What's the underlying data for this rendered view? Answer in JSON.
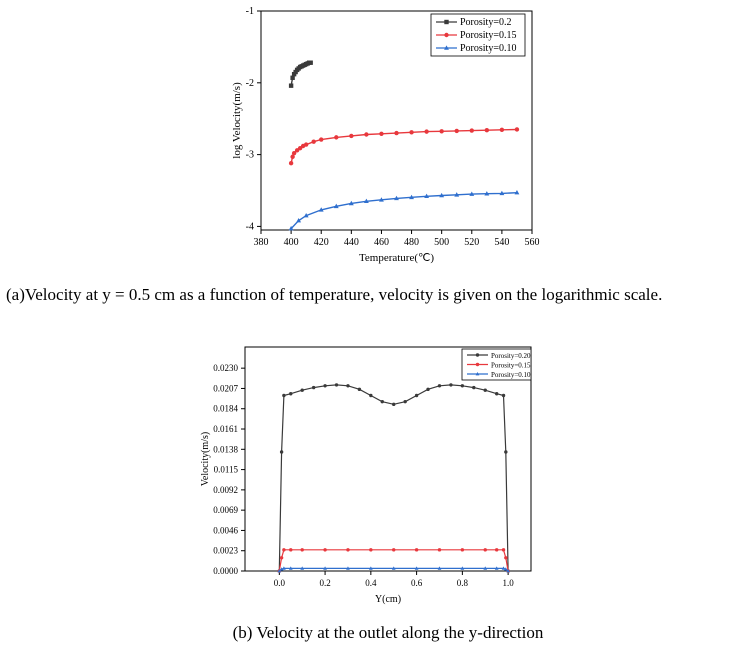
{
  "captions": {
    "a": "(a)Velocity at y = 0.5 cm as a function of temperature, velocity is given on the logarithmic scale.",
    "b": "(b)  Velocity at the outlet along the y-direction"
  },
  "colors": {
    "black_series": "#3a3a3a",
    "red_series": "#e8383d",
    "blue_series": "#2f6fce"
  },
  "chart_data": [
    {
      "type": "line",
      "xlabel": "Temperature(℃)",
      "ylabel": "log Velocity(m/s)",
      "xlim": [
        380,
        560
      ],
      "ylim": [
        -4.05,
        -1
      ],
      "xticks": [
        "380",
        "400",
        "420",
        "440",
        "460",
        "480",
        "500",
        "520",
        "540",
        "560"
      ],
      "yticks": [
        "-1",
        "-2",
        "-3",
        "-4"
      ],
      "legend_position": "top-right",
      "series": [
        {
          "name": "Porosity=0.2",
          "color": "#3a3a3a",
          "marker": "square",
          "x": [
            400,
            401,
            402,
            403,
            404,
            405,
            406,
            407,
            408,
            409,
            410,
            411,
            412,
            413
          ],
          "y": [
            -2.04,
            -1.93,
            -1.88,
            -1.85,
            -1.82,
            -1.8,
            -1.78,
            -1.77,
            -1.76,
            -1.75,
            -1.74,
            -1.73,
            -1.72,
            -1.72
          ]
        },
        {
          "name": "Porosity=0.15",
          "color": "#e8383d",
          "marker": "circle",
          "x": [
            400,
            401,
            402,
            404,
            406,
            408,
            410,
            415,
            420,
            430,
            440,
            450,
            460,
            470,
            480,
            490,
            500,
            510,
            520,
            530,
            540,
            550
          ],
          "y": [
            -3.12,
            -3.03,
            -2.98,
            -2.94,
            -2.91,
            -2.88,
            -2.86,
            -2.82,
            -2.79,
            -2.76,
            -2.74,
            -2.72,
            -2.71,
            -2.7,
            -2.69,
            -2.68,
            -2.675,
            -2.67,
            -2.665,
            -2.66,
            -2.655,
            -2.65
          ]
        },
        {
          "name": "Porosity=0.10",
          "color": "#2f6fce",
          "marker": "triangle",
          "x": [
            400,
            405,
            410,
            420,
            430,
            440,
            450,
            460,
            470,
            480,
            490,
            500,
            510,
            520,
            530,
            540,
            550
          ],
          "y": [
            -4.03,
            -3.92,
            -3.85,
            -3.77,
            -3.72,
            -3.68,
            -3.65,
            -3.63,
            -3.61,
            -3.595,
            -3.58,
            -3.57,
            -3.56,
            -3.55,
            -3.545,
            -3.54,
            -3.53
          ]
        }
      ]
    },
    {
      "type": "line",
      "xlabel": "Y(cm)",
      "ylabel": "Velocity(m/s)",
      "xlim": [
        -0.15,
        1.1
      ],
      "ylim": [
        0,
        0.0254
      ],
      "xticks": [
        "0.0",
        "0.2",
        "0.4",
        "0.6",
        "0.8",
        "1.0"
      ],
      "yticks": [
        "0.0000",
        "0.0023",
        "0.0046",
        "0.0069",
        "0.0092",
        "0.0115",
        "0.0138",
        "0.0161",
        "0.0184",
        "0.0207",
        "0.0230"
      ],
      "legend_position": "top-right",
      "series": [
        {
          "name": "Porosity=0.20",
          "color": "#3a3a3a",
          "marker": "circle",
          "x": [
            0,
            0.01,
            0.02,
            0.05,
            0.1,
            0.15,
            0.2,
            0.25,
            0.3,
            0.35,
            0.4,
            0.45,
            0.5,
            0.55,
            0.6,
            0.65,
            0.7,
            0.75,
            0.8,
            0.85,
            0.9,
            0.95,
            0.98,
            0.99,
            1.0
          ],
          "y": [
            0,
            0.0135,
            0.0199,
            0.0201,
            0.0205,
            0.0208,
            0.021,
            0.0211,
            0.021,
            0.0206,
            0.0199,
            0.0192,
            0.0189,
            0.0192,
            0.0199,
            0.0206,
            0.021,
            0.0211,
            0.021,
            0.0208,
            0.0205,
            0.0201,
            0.0199,
            0.0135,
            0
          ]
        },
        {
          "name": "Porosity=0.15",
          "color": "#e8383d",
          "marker": "circle",
          "x": [
            0,
            0.01,
            0.02,
            0.05,
            0.1,
            0.2,
            0.3,
            0.4,
            0.5,
            0.6,
            0.7,
            0.8,
            0.9,
            0.95,
            0.98,
            0.99,
            1.0
          ],
          "y": [
            0,
            0.0015,
            0.0024,
            0.0024,
            0.0024,
            0.0024,
            0.0024,
            0.0024,
            0.0024,
            0.0024,
            0.0024,
            0.0024,
            0.0024,
            0.0024,
            0.0024,
            0.0015,
            0
          ]
        },
        {
          "name": "Porosity=0.10",
          "color": "#2f6fce",
          "marker": "triangle",
          "x": [
            0,
            0.01,
            0.02,
            0.05,
            0.1,
            0.2,
            0.3,
            0.4,
            0.5,
            0.6,
            0.7,
            0.8,
            0.9,
            0.95,
            0.98,
            0.99,
            1.0
          ],
          "y": [
            0,
            0.0002,
            0.0003,
            0.0003,
            0.0003,
            0.0003,
            0.0003,
            0.0003,
            0.0003,
            0.0003,
            0.0003,
            0.0003,
            0.0003,
            0.0003,
            0.0003,
            0.0002,
            0
          ]
        }
      ]
    }
  ]
}
